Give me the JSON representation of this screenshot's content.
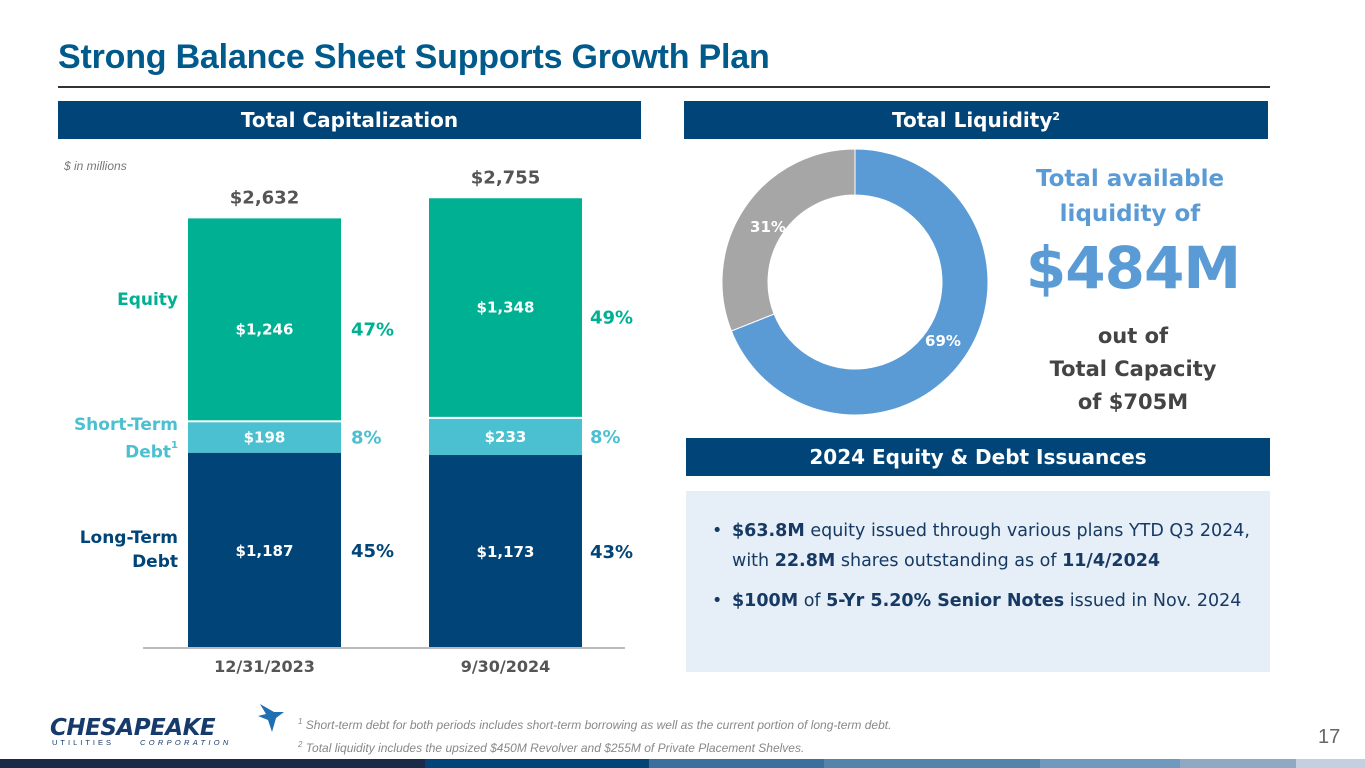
{
  "title": "Strong Balance Sheet Supports Growth Plan",
  "sections": {
    "capitalization": "Total Capitalization",
    "liquidity": "Total Liquidity",
    "liquidity_footnote_ref": "2",
    "issuances": "2024 Equity & Debt Issuances"
  },
  "units_note": "$ in millions",
  "colors": {
    "brand_navy": "#004478",
    "title_blue": "#005a8c",
    "equity": "#00b092",
    "short_term_debt": "#4bc0d0",
    "long_term_debt": "#004478",
    "liquidity_available": "#5b9bd5",
    "liquidity_used": "#a6a6a6"
  },
  "chart_data": [
    {
      "type": "bar",
      "stacked": true,
      "title": "Total Capitalization",
      "xlabel": "",
      "ylabel": "$ in millions",
      "categories": [
        "12/31/2023",
        "9/30/2024"
      ],
      "totals": [
        "$2,632",
        "$2,755"
      ],
      "total_values": [
        2632,
        2755
      ],
      "series": [
        {
          "name": "Long-Term Debt",
          "label_lines": [
            "Long-Term",
            "Debt"
          ],
          "values": [
            1187,
            1173
          ],
          "labels": [
            "$1,187",
            "$1,173"
          ],
          "percents": [
            "45%",
            "43%"
          ],
          "color": "#004478",
          "label_color": "#004478"
        },
        {
          "name": "Short-Term Debt",
          "label_lines": [
            "Short-Term",
            "Debt"
          ],
          "footnote_ref": "1",
          "values": [
            198,
            233
          ],
          "labels": [
            "$198",
            "$233"
          ],
          "percents": [
            "8%",
            "8%"
          ],
          "color": "#4bc0d0",
          "label_color": "#4bc0d0"
        },
        {
          "name": "Equity",
          "label_lines": [
            "Equity"
          ],
          "values": [
            1246,
            1348
          ],
          "labels": [
            "$1,246",
            "$1,348"
          ],
          "percents": [
            "47%",
            "49%"
          ],
          "color": "#00b092",
          "label_color": "#00b092"
        }
      ],
      "ylim": [
        0,
        2900
      ],
      "grid": false,
      "legend": "left"
    },
    {
      "type": "pie",
      "donut": true,
      "title": "Total Liquidity",
      "slices": [
        {
          "name": "Available",
          "value": 69,
          "label": "69%",
          "color": "#5b9bd5"
        },
        {
          "name": "Used",
          "value": 31,
          "label": "31%",
          "color": "#a6a6a6"
        }
      ]
    }
  ],
  "liquidity": {
    "headline_lines": [
      "Total available",
      "liquidity of"
    ],
    "amount": "$484M",
    "outof_lines": [
      "out of",
      "Total Capacity",
      "of $705M"
    ]
  },
  "issuances": [
    {
      "segments": [
        {
          "text": " $63.8M",
          "bold": true
        },
        {
          "text": " equity issued through various plans YTD Q3 2024, with ",
          "bold": false
        },
        {
          "text": "22.8M",
          "bold": true
        },
        {
          "text": " shares outstanding as of ",
          "bold": false
        },
        {
          "text": "11/4/2024",
          "bold": true
        }
      ]
    },
    {
      "segments": [
        {
          "text": "$100M",
          "bold": true
        },
        {
          "text": " of ",
          "bold": false
        },
        {
          "text": "5-Yr 5.20% Senior Notes",
          "bold": true
        },
        {
          "text": " issued in Nov. 2024",
          "bold": false
        }
      ]
    }
  ],
  "footnotes": [
    {
      "ref": "1",
      "text": "Short-term debt for both periods includes short-term borrowing as well as the current portion of long-term debt."
    },
    {
      "ref": "2",
      "text": "Total liquidity includes the upsized $450M Revolver and $255M of Private Placement Shelves."
    }
  ],
  "logo": {
    "name": "CHESAPEAKE",
    "subtitle_left": "UTILITIES",
    "subtitle_right": "CORPORATION"
  },
  "page_number": "17",
  "footer_band_colors": [
    "#1a2b4a",
    "#004478",
    "#3a6f9e",
    "#5584aa",
    "#6f9abd",
    "#8fa9c4",
    "#c4d0e0"
  ]
}
